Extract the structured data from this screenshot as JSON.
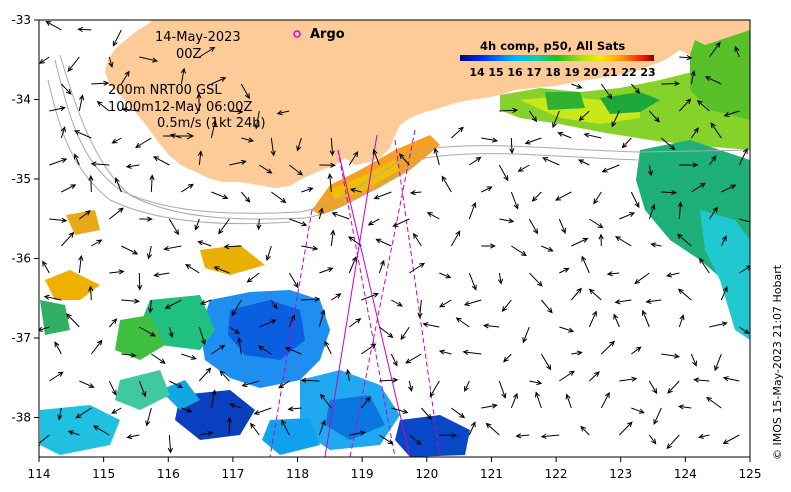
{
  "map": {
    "date": "14-May-2023",
    "hour": "00Z",
    "altimetry_line": "200m  NRT00 GSL",
    "depth_line": "1000m12-May 06:00Z",
    "scale_label": "0.5m/s (1kt 24h)",
    "argo_label": "Argo",
    "credit": "© IMOS 15-May-2023 21:07 Hobart",
    "x_ticks": [
      "114",
      "115",
      "116",
      "117",
      "118",
      "119",
      "120",
      "121",
      "122",
      "123",
      "124",
      "125"
    ],
    "y_ticks": [
      "-33",
      "-34",
      "-35",
      "-36",
      "-37",
      "-38"
    ]
  },
  "colorbar": {
    "title": "4h comp, p50, All Sats",
    "labels": [
      "14",
      "15",
      "16",
      "17",
      "18",
      "19",
      "20",
      "21",
      "22",
      "23"
    ]
  },
  "colors": {
    "land": "#fdcb98",
    "ssh_contour": "#aaaaaa",
    "track": "#cc00cc"
  }
}
